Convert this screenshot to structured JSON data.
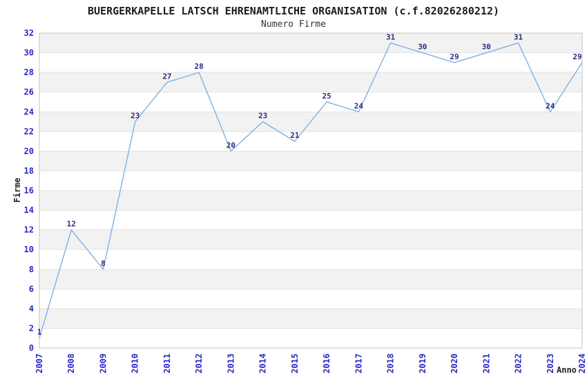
{
  "page": {
    "background": "#ffffff"
  },
  "chart_data": {
    "type": "line",
    "title": "BUERGERKAPELLE LATSCH EHRENAMTLICHE ORGANISATION (c.f.82026280212)",
    "subtitle": "Numero Firme",
    "xlabel": "Anno",
    "ylabel": "Firme",
    "categories": [
      "2007",
      "2008",
      "2009",
      "2010",
      "2011",
      "2012",
      "2013",
      "2014",
      "2015",
      "2016",
      "2017",
      "2018",
      "2019",
      "2020",
      "2021",
      "2022",
      "2023",
      "2024"
    ],
    "series": [
      {
        "name": "Numero Firme",
        "values": [
          1,
          12,
          8,
          23,
          27,
          28,
          20,
          23,
          21,
          25,
          24,
          31,
          30,
          29,
          30,
          31,
          24,
          29
        ]
      }
    ],
    "ylim": [
      0,
      32
    ],
    "ytick_step": 2,
    "yticks": [
      0,
      2,
      4,
      6,
      8,
      10,
      12,
      14,
      16,
      18,
      20,
      22,
      24,
      26,
      28,
      30,
      32
    ],
    "grid": "alternating horizontal bands every 2 units, gridline at each tick",
    "legend_position": "none",
    "point_labels_visible": true,
    "x_tick_rotation": -90,
    "colors": {
      "line": "#7eb1e6",
      "tick_label": "#2828cc",
      "data_label": "#2b2b85",
      "band": "#f2f2f2",
      "gridline": "#e2e2e2",
      "plot_border": "#c4c4c4",
      "title": "#1c1c1c",
      "subtitle": "#333333",
      "axis_title": "#222222"
    }
  }
}
